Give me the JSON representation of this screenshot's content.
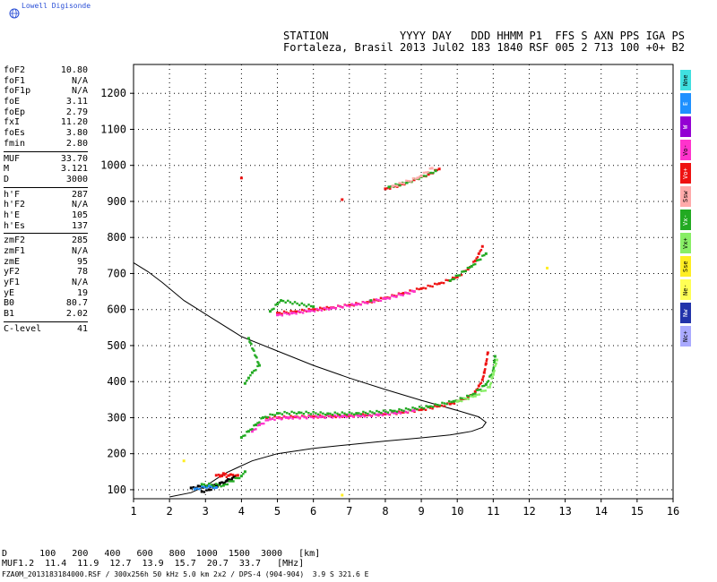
{
  "header": {
    "logo_text": "Lowell Digisonde",
    "line1": "STATION           YYYY DAY   DDD HHMM P1  FFS S AXN PPS IGA PS",
    "line2": "Fortaleza, Brasil 2013 Jul02 183 1840 RSF 005 2 713 100 +0+ B2"
  },
  "params": [
    [
      [
        "foF2",
        "10.80"
      ],
      [
        "foF1",
        "N/A"
      ],
      [
        "foF1p",
        "N/A"
      ],
      [
        "foE",
        "3.11"
      ],
      [
        "foEp",
        "2.79"
      ],
      [
        "fxI",
        "11.20"
      ],
      [
        "foEs",
        "3.80"
      ],
      [
        "fmin",
        "2.80"
      ]
    ],
    [
      [
        "MUF",
        "33.70"
      ],
      [
        "M",
        "3.121"
      ],
      [
        "D",
        "3000"
      ]
    ],
    [
      [
        "h'F",
        "287"
      ],
      [
        "h'F2",
        "N/A"
      ],
      [
        "h'E",
        "105"
      ],
      [
        "h'Es",
        "137"
      ]
    ],
    [
      [
        "zmF2",
        "285"
      ],
      [
        "zmF1",
        "N/A"
      ],
      [
        "zmE",
        "95"
      ],
      [
        "yF2",
        "78"
      ],
      [
        "yF1",
        "N/A"
      ],
      [
        "yE",
        "19"
      ],
      [
        "B0",
        "80.7"
      ],
      [
        "B1",
        "2.02"
      ]
    ],
    [
      [
        "C-level",
        "41"
      ]
    ]
  ],
  "legend": [
    {
      "label": "Nne",
      "color": "#40e0e0"
    },
    {
      "label": "E",
      "color": "#1e90ff"
    },
    {
      "label": "W",
      "color": "#9400d3"
    },
    {
      "label": "Vo-",
      "color": "#ff33cc"
    },
    {
      "label": "Vo+",
      "color": "#ee1111"
    },
    {
      "label": "Ssw",
      "color": "#ffaaaa"
    },
    {
      "label": "Vx-",
      "color": "#22aa22"
    },
    {
      "label": "Vx+",
      "color": "#88ee66"
    },
    {
      "label": "Sse",
      "color": "#ffee22"
    },
    {
      "label": "Ne-",
      "color": "#ffff55"
    },
    {
      "label": "Nw",
      "color": "#2233aa"
    },
    {
      "label": "Nc+",
      "color": "#aaaaff"
    }
  ],
  "muf_table": {
    "d_label": "D",
    "d_values": [
      "100",
      "200",
      "400",
      "600",
      "800",
      "1000",
      "1500",
      "3000"
    ],
    "d_unit": "[km]",
    "muf_label": "MUF",
    "muf_values": [
      "11.2",
      "11.4",
      "11.9",
      "12.7",
      "13.9",
      "15.7",
      "20.7",
      "33.7"
    ],
    "muf_unit": "[MHz]"
  },
  "footer": "FZA0M_2013183184000.RSF / 300x256h 50 kHz 5.0 km 2x2 / DPS-4 (904-904)  3.9 S 321.6 E",
  "chart_data": {
    "type": "scatter",
    "title": "",
    "xlabel": "",
    "ylabel": "",
    "xlim": [
      1,
      16
    ],
    "ylim": [
      75,
      1280
    ],
    "x_ticks": [
      1,
      2,
      3,
      4,
      5,
      6,
      7,
      8,
      9,
      10,
      11,
      12,
      13,
      14,
      15,
      16
    ],
    "y_ticks": [
      100,
      200,
      300,
      400,
      500,
      600,
      700,
      800,
      900,
      1000,
      1100,
      1200
    ],
    "grid": true,
    "series": [
      {
        "color": "#ee1111",
        "points": [
          [
            4.7,
            300
          ],
          [
            5.0,
            300
          ],
          [
            5.5,
            302
          ],
          [
            6.0,
            303
          ],
          [
            6.5,
            304
          ],
          [
            7.0,
            305
          ],
          [
            7.5,
            307
          ],
          [
            8.0,
            310
          ],
          [
            8.5,
            315
          ],
          [
            9.0,
            322
          ],
          [
            9.5,
            332
          ],
          [
            9.8,
            338
          ],
          [
            10.1,
            348
          ],
          [
            10.3,
            358
          ],
          [
            10.5,
            372
          ],
          [
            10.6,
            388
          ],
          [
            10.7,
            405
          ],
          [
            10.75,
            425
          ],
          [
            10.8,
            450
          ],
          [
            10.85,
            480
          ]
        ]
      },
      {
        "color": "#ff33cc",
        "points": [
          [
            4.3,
            262
          ],
          [
            4.5,
            280
          ],
          [
            4.8,
            296
          ],
          [
            5.3,
            300
          ],
          [
            6.2,
            302
          ],
          [
            6.8,
            304
          ],
          [
            7.3,
            305
          ],
          [
            7.8,
            308
          ],
          [
            8.3,
            313
          ],
          [
            8.8,
            320
          ]
        ]
      },
      {
        "color": "#22aa22",
        "points": [
          [
            4.0,
            245
          ],
          [
            4.2,
            262
          ],
          [
            4.4,
            280
          ],
          [
            4.6,
            300
          ],
          [
            5.0,
            312
          ],
          [
            5.6,
            314
          ],
          [
            6.4,
            311
          ],
          [
            7.2,
            312
          ],
          [
            8.2,
            318
          ],
          [
            9.2,
            330
          ],
          [
            9.9,
            345
          ],
          [
            10.4,
            362
          ],
          [
            10.8,
            392
          ],
          [
            11.0,
            430
          ],
          [
            11.05,
            470
          ]
        ]
      },
      {
        "color": "#88ee66",
        "points": [
          [
            10.0,
            345
          ],
          [
            10.5,
            360
          ],
          [
            10.9,
            385
          ],
          [
            11.0,
            420
          ],
          [
            11.1,
            460
          ]
        ]
      },
      {
        "color": "#ee1111",
        "points": [
          [
            5.0,
            590
          ],
          [
            5.5,
            594
          ],
          [
            6.0,
            600
          ],
          [
            6.5,
            605
          ],
          [
            7.0,
            612
          ],
          [
            7.5,
            620
          ],
          [
            8.0,
            632
          ],
          [
            8.5,
            645
          ],
          [
            9.0,
            658
          ],
          [
            9.5,
            672
          ],
          [
            10.0,
            690
          ],
          [
            10.3,
            712
          ],
          [
            10.5,
            735
          ],
          [
            10.6,
            755
          ],
          [
            10.7,
            775
          ]
        ]
      },
      {
        "color": "#ff33cc",
        "points": [
          [
            5.0,
            585
          ],
          [
            5.4,
            590
          ],
          [
            5.9,
            596
          ],
          [
            6.5,
            604
          ],
          [
            7.2,
            614
          ],
          [
            8.0,
            630
          ],
          [
            8.8,
            650
          ]
        ]
      },
      {
        "color": "#22aa22",
        "points": [
          [
            4.8,
            595
          ],
          [
            5.0,
            615
          ],
          [
            5.1,
            625
          ],
          [
            6.0,
            608
          ],
          [
            7.6,
            625
          ],
          [
            9.8,
            680
          ],
          [
            10.4,
            720
          ],
          [
            10.8,
            755
          ]
        ]
      },
      {
        "color": "#22aa22",
        "points": [
          [
            4.1,
            395
          ],
          [
            4.2,
            410
          ],
          [
            4.3,
            425
          ],
          [
            4.5,
            445
          ],
          [
            4.2,
            520
          ]
        ]
      },
      {
        "color": "#ee1111",
        "points": [
          [
            8.0,
            935
          ],
          [
            8.4,
            945
          ],
          [
            8.8,
            960
          ],
          [
            9.2,
            975
          ],
          [
            9.5,
            990
          ],
          [
            4.0,
            965
          ],
          [
            6.8,
            905
          ]
        ]
      },
      {
        "color": "#22aa22",
        "points": [
          [
            8.1,
            940
          ],
          [
            8.6,
            952
          ],
          [
            9.0,
            968
          ],
          [
            9.4,
            985
          ]
        ]
      },
      {
        "color": "#ffaaaa",
        "points": [
          [
            8.2,
            942
          ],
          [
            8.9,
            965
          ],
          [
            9.3,
            992
          ]
        ]
      },
      {
        "color": "#ee1111",
        "points": [
          [
            3.3,
            140
          ],
          [
            3.5,
            145
          ],
          [
            3.7,
            142
          ],
          [
            3.9,
            140
          ],
          [
            3.4,
            137
          ]
        ]
      },
      {
        "color": "#000000",
        "points": [
          [
            2.6,
            105
          ],
          [
            2.8,
            110
          ],
          [
            3.0,
            108
          ],
          [
            3.2,
            112
          ],
          [
            3.4,
            118
          ],
          [
            3.6,
            125
          ],
          [
            3.8,
            135
          ],
          [
            3.1,
            100
          ],
          [
            2.9,
            95
          ]
        ]
      },
      {
        "color": "#1e90ff",
        "points": [
          [
            2.7,
            102
          ],
          [
            3.1,
            110
          ],
          [
            3.3,
            106
          ]
        ]
      },
      {
        "color": "#22aa22",
        "points": [
          [
            2.9,
            115
          ],
          [
            3.5,
            112
          ],
          [
            4.0,
            138
          ],
          [
            4.1,
            150
          ]
        ]
      },
      {
        "color": "#ffee22",
        "points": [
          [
            2.4,
            180
          ],
          [
            12.5,
            715
          ],
          [
            6.8,
            85
          ]
        ]
      }
    ],
    "profile_curve": [
      [
        2.0,
        80
      ],
      [
        2.6,
        92
      ],
      [
        3.0,
        110
      ],
      [
        3.3,
        130
      ],
      [
        3.6,
        148
      ],
      [
        3.9,
        162
      ],
      [
        4.3,
        180
      ],
      [
        5.0,
        200
      ],
      [
        6.0,
        215
      ],
      [
        7.0,
        225
      ],
      [
        8.0,
        235
      ],
      [
        9.0,
        244
      ],
      [
        9.8,
        252
      ],
      [
        10.4,
        262
      ],
      [
        10.7,
        273
      ],
      [
        10.8,
        287
      ],
      [
        10.6,
        302
      ],
      [
        10.0,
        320
      ],
      [
        9.0,
        348
      ],
      [
        8.0,
        378
      ],
      [
        7.0,
        410
      ],
      [
        6.0,
        445
      ],
      [
        5.0,
        485
      ],
      [
        4.0,
        525
      ],
      [
        3.2,
        575
      ],
      [
        2.4,
        625
      ],
      [
        1.8,
        675
      ],
      [
        1.4,
        705
      ],
      [
        1.0,
        730
      ]
    ]
  }
}
